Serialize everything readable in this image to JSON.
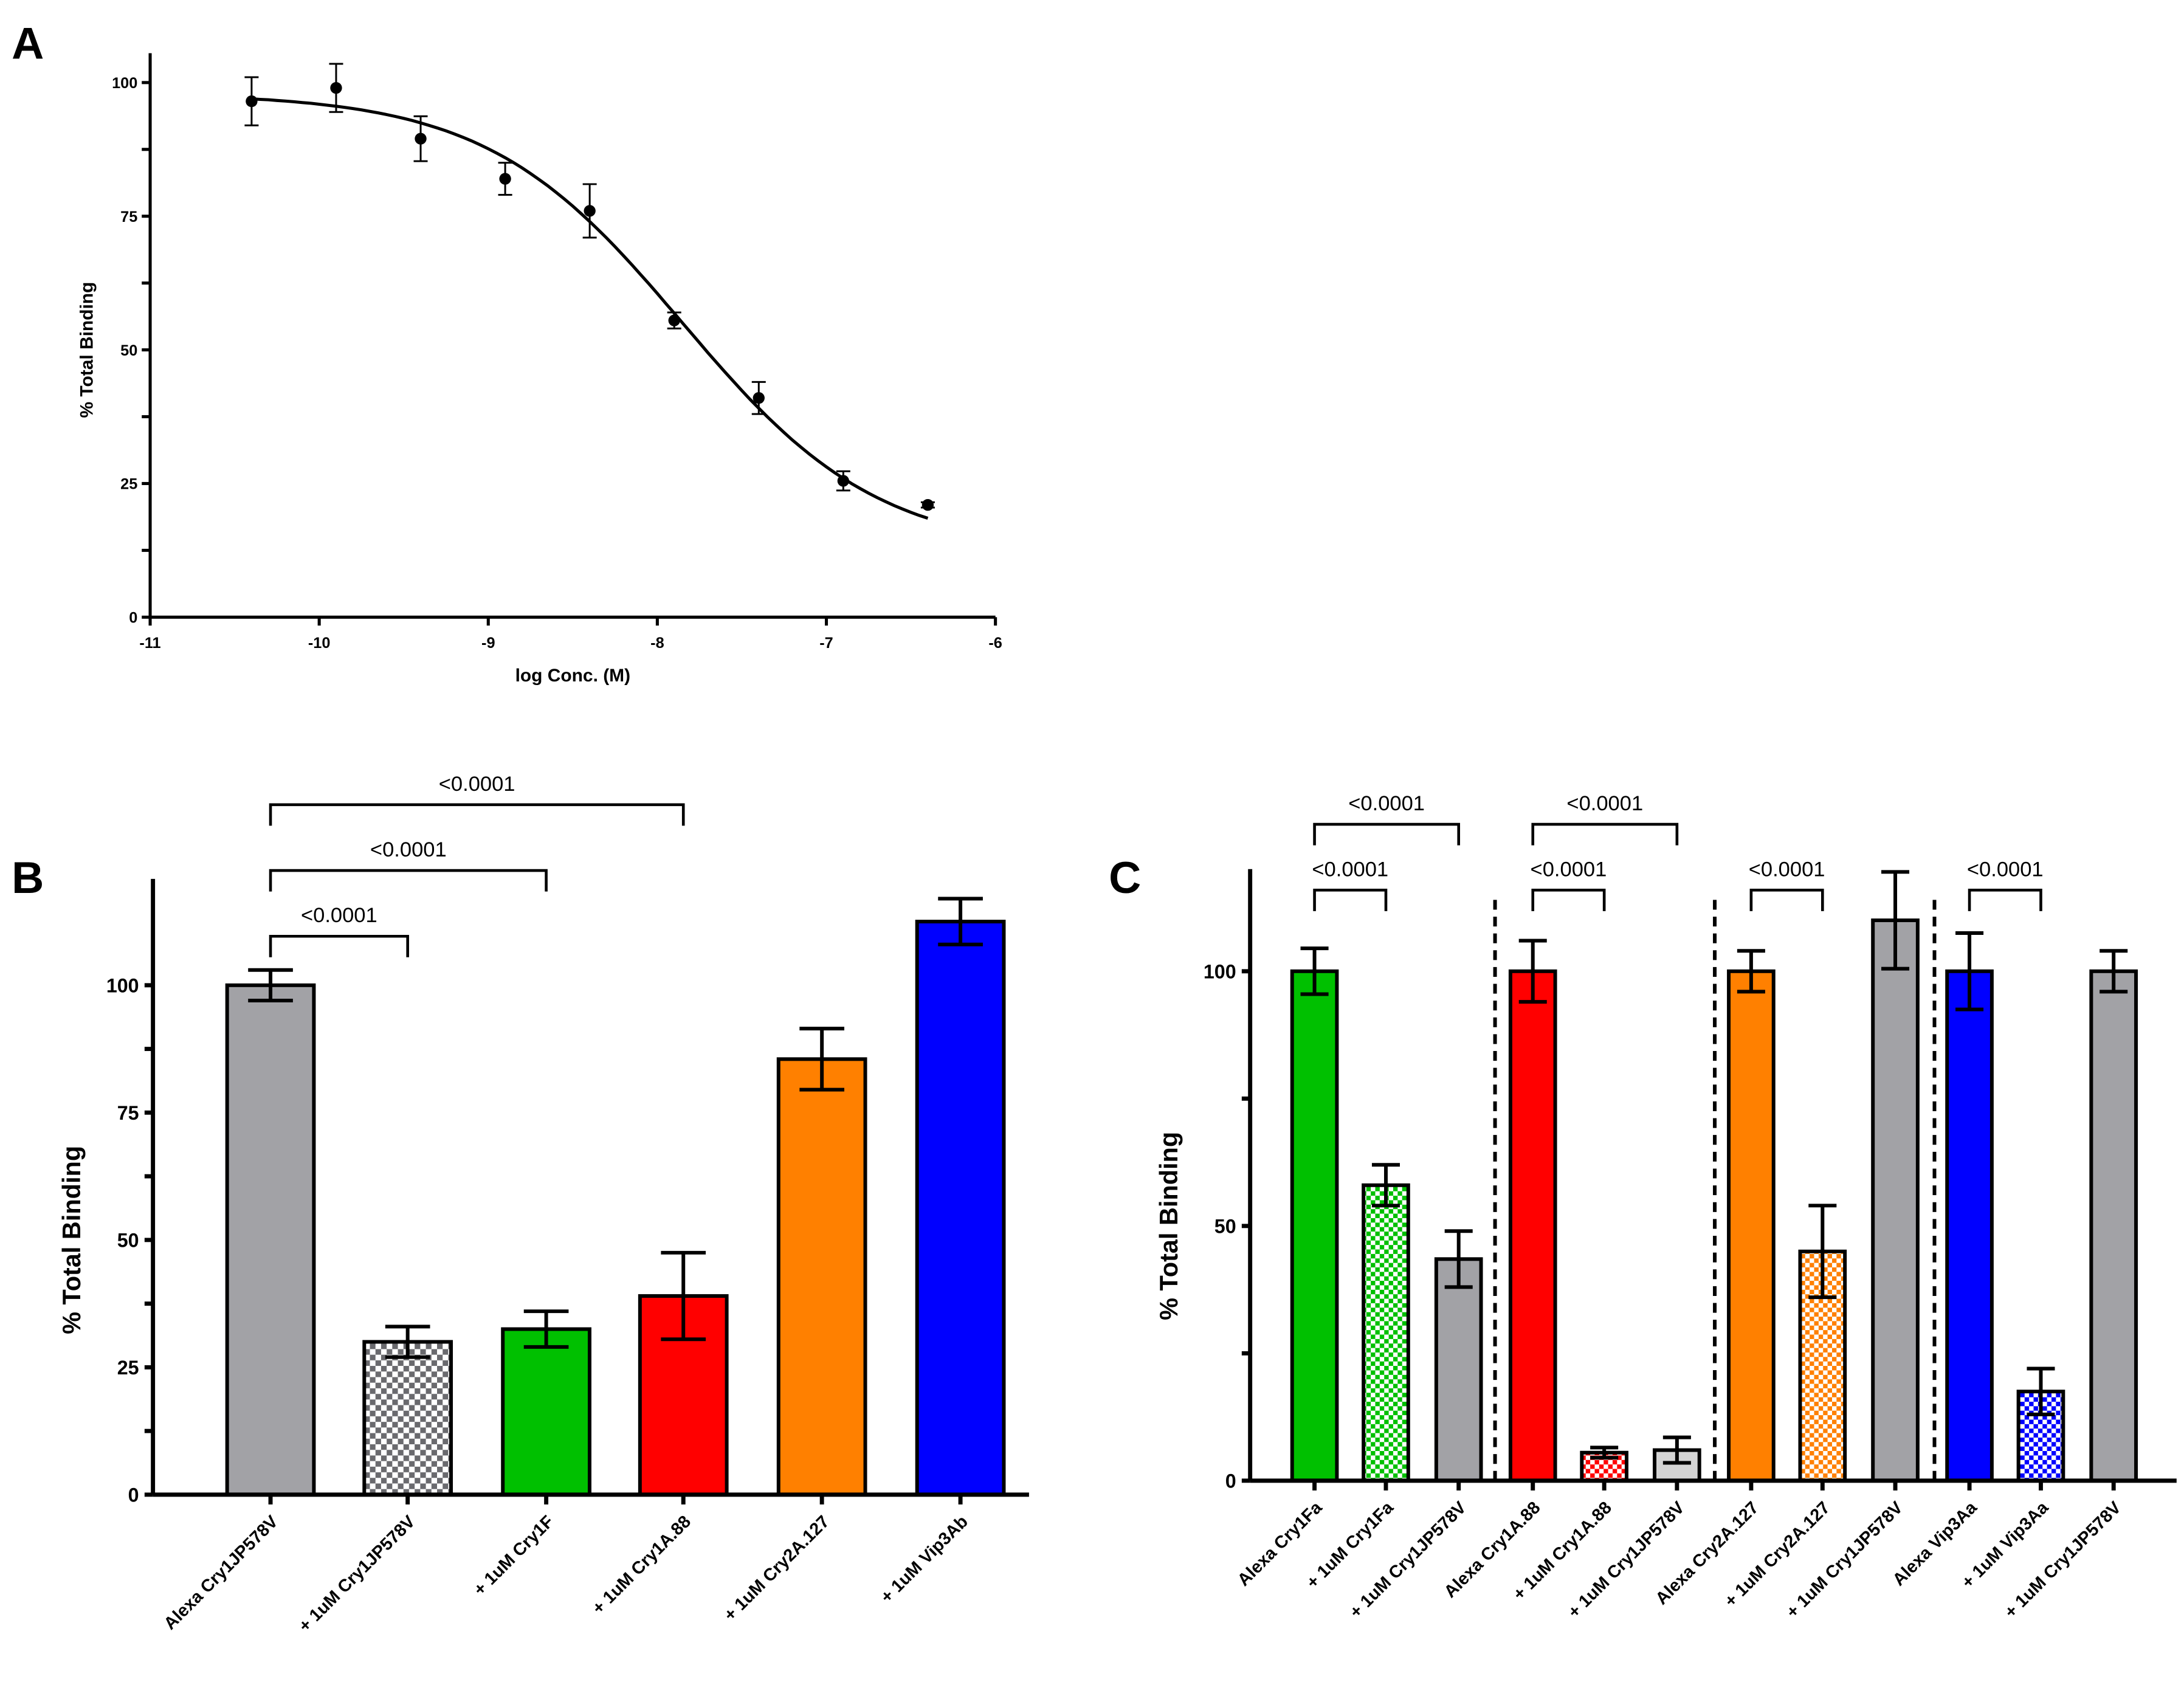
{
  "panel_labels": [
    "A",
    "B",
    "C"
  ],
  "chart_data": [
    {
      "type": "scatter",
      "panel": "A",
      "title": "",
      "xlabel": "log Conc. (M)",
      "ylabel": "% Total Binding",
      "xlim": [
        -11,
        -6
      ],
      "ylim": [
        0,
        105
      ],
      "xticks": [
        "-11",
        "-10",
        "-9",
        "-8",
        "-7",
        "-6"
      ],
      "yticks": [
        "0",
        "25",
        "50",
        "75",
        "100"
      ],
      "x": [
        -10.4,
        -9.9,
        -9.4,
        -8.9,
        -8.4,
        -7.9,
        -7.4,
        -6.9,
        -6.4
      ],
      "y": [
        96.5,
        99,
        89.5,
        82,
        76,
        55.5,
        41,
        25.5,
        21
      ],
      "error": [
        4.5,
        4.5,
        4.2,
        3,
        5,
        1.5,
        3,
        1.8,
        0.5
      ],
      "fit": {
        "model": "sigmoidal dose-response",
        "top": 98,
        "bottom": 12,
        "logIC50": -7.85,
        "hill": -0.75,
        "x_range": [
          -10.4,
          -6.4
        ]
      },
      "grid": false
    },
    {
      "type": "bar",
      "panel": "B",
      "ylabel": "% Total Binding",
      "ylim": [
        0,
        120
      ],
      "yticks": [
        "0",
        "25",
        "50",
        "75",
        "100"
      ],
      "categories": [
        "Alexa Cry1JP578V",
        "+ 1uM Cry1JP578V",
        "+ 1uM Cry1F",
        "+ 1uM Cry1A.88",
        "+ 1uM Cry2A.127",
        "+ 1uM Vip3Ab"
      ],
      "values": [
        100,
        30,
        32.5,
        39,
        85.5,
        112.5
      ],
      "error": [
        3,
        3,
        3.5,
        8.5,
        6,
        4.5
      ],
      "colors": [
        "#a2a2a6",
        "#6a6a6e",
        "#00c000",
        "#ff0000",
        "#ff8000",
        "#0000ff"
      ],
      "patterned": [
        false,
        true,
        false,
        false,
        false,
        false
      ],
      "comparisons": [
        {
          "from": 0,
          "to": 1,
          "label": "<0.0001"
        },
        {
          "from": 0,
          "to": 2,
          "label": "<0.0001"
        },
        {
          "from": 0,
          "to": 3,
          "label": "<0.0001"
        }
      ],
      "grid": false
    },
    {
      "type": "bar",
      "panel": "C",
      "ylabel": "% Total Binding",
      "ylim": [
        0,
        120
      ],
      "yticks": [
        "0",
        "50",
        "100"
      ],
      "categories": [
        "Alexa Cry1Fa",
        "+ 1uM Cry1Fa",
        "+ 1uM Cry1JP578V",
        "Alexa Cry1A.88",
        "+ 1uM Cry1A.88",
        "+ 1uM Cry1JP578V",
        "Alexa Cry2A.127",
        "+ 1uM Cry2A.127",
        "+ 1uM Cry1JP578V",
        "Alexa Vip3Aa",
        "+ 1uM Vip3Aa",
        "+ 1uM Cry1JP578V"
      ],
      "values": [
        100,
        58,
        43.5,
        100,
        5.5,
        6,
        100,
        45,
        110,
        100,
        17.5,
        100
      ],
      "error": [
        4.5,
        4,
        5.5,
        6,
        1,
        2.5,
        4,
        9,
        9.5,
        7.5,
        4.5,
        4
      ],
      "colors": [
        "#00c000",
        "#00c000",
        "#a2a2a6",
        "#ff0000",
        "#ff0000",
        "#d4d4d4",
        "#ff8000",
        "#ff8000",
        "#a2a2a6",
        "#0000ff",
        "#0000ff",
        "#a2a2a6"
      ],
      "patterned": [
        false,
        true,
        false,
        false,
        true,
        false,
        false,
        true,
        false,
        false,
        true,
        false
      ],
      "comparisons": [
        {
          "from": 0,
          "to": 1,
          "label": "<0.0001"
        },
        {
          "from": 0,
          "to": 2,
          "label": "<0.0001"
        },
        {
          "from": 3,
          "to": 4,
          "label": "<0.0001"
        },
        {
          "from": 3,
          "to": 5,
          "label": "<0.0001"
        },
        {
          "from": 6,
          "to": 7,
          "label": "<0.0001"
        },
        {
          "from": 9,
          "to": 10,
          "label": "<0.0001"
        }
      ],
      "group_separators": "dashed",
      "grid": false
    }
  ]
}
